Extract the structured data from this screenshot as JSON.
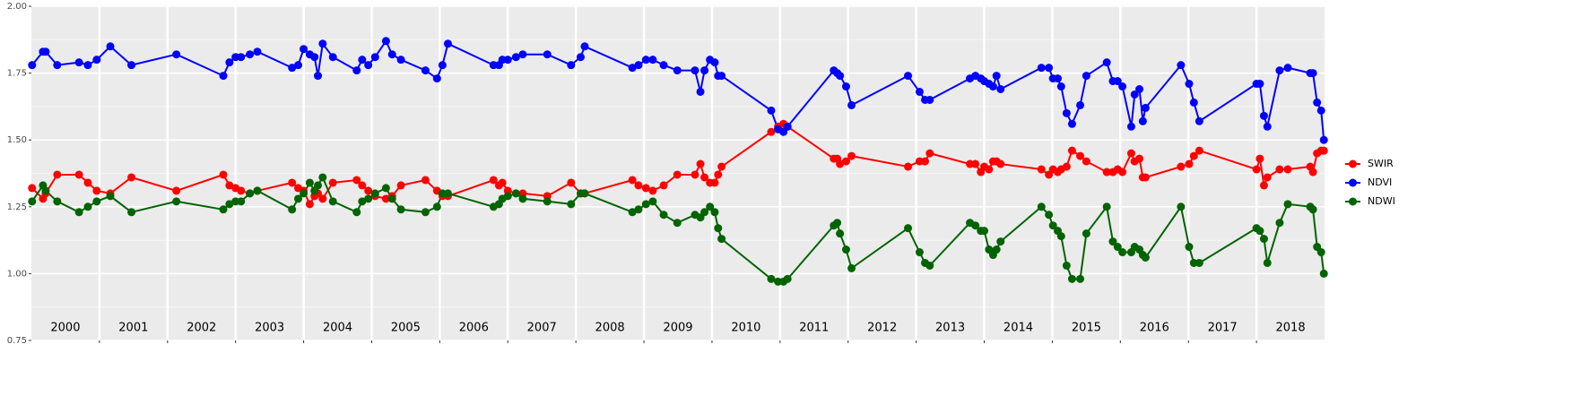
{
  "chart_data": {
    "type": "line",
    "x": [
      2000.01,
      2000.17,
      2000.21,
      2000.38,
      2000.7,
      2000.83,
      2000.96,
      2001.16,
      2001.47,
      2002.13,
      2002.82,
      2002.91,
      2003.0,
      2003.08,
      2003.21,
      2003.32,
      2003.83,
      2003.92,
      2004.0,
      2004.09,
      2004.16,
      2004.21,
      2004.28,
      2004.43,
      2004.78,
      2004.86,
      2004.95,
      2005.05,
      2005.21,
      2005.3,
      2005.43,
      2005.79,
      2005.96,
      2006.04,
      2006.12,
      2006.79,
      2006.87,
      2006.92,
      2007.0,
      2007.12,
      2007.22,
      2007.58,
      2007.93,
      2008.07,
      2008.13,
      2008.83,
      2008.92,
      2009.03,
      2009.13,
      2009.29,
      2009.49,
      2009.75,
      2009.83,
      2009.89,
      2009.97,
      2010.04,
      2010.09,
      2010.14,
      2010.87,
      2010.97,
      2011.05,
      2011.11,
      2011.79,
      2011.84,
      2011.88,
      2011.97,
      2012.05,
      2012.88,
      2013.05,
      2013.13,
      2013.2,
      2013.79,
      2013.87,
      2013.95,
      2014.0,
      2014.07,
      2014.13,
      2014.18,
      2014.24,
      2014.84,
      2014.95,
      2015.01,
      2015.08,
      2015.13,
      2015.21,
      2015.29,
      2015.41,
      2015.5,
      2015.8,
      2015.89,
      2015.96,
      2016.03,
      2016.16,
      2016.21,
      2016.28,
      2016.33,
      2016.37,
      2016.89,
      2017.01,
      2017.08,
      2017.16,
      2018.0,
      2018.05,
      2018.11,
      2018.16,
      2018.34,
      2018.46,
      2018.79,
      2018.83,
      2018.89,
      2018.95,
      2018.99
    ],
    "series": [
      {
        "name": "SWIR",
        "color": "#ff0000",
        "values": [
          1.32,
          1.28,
          1.3,
          1.37,
          1.37,
          1.34,
          1.31,
          1.3,
          1.36,
          1.31,
          1.37,
          1.33,
          1.32,
          1.31,
          1.3,
          1.31,
          1.34,
          1.32,
          1.31,
          1.26,
          1.29,
          1.3,
          1.28,
          1.34,
          1.35,
          1.33,
          1.31,
          1.29,
          1.28,
          1.29,
          1.33,
          1.35,
          1.31,
          1.29,
          1.29,
          1.35,
          1.33,
          1.34,
          1.31,
          1.3,
          1.3,
          1.29,
          1.34,
          1.3,
          1.3,
          1.35,
          1.33,
          1.32,
          1.31,
          1.33,
          1.37,
          1.37,
          1.41,
          1.36,
          1.34,
          1.34,
          1.37,
          1.4,
          1.53,
          1.55,
          1.56,
          1.55,
          1.43,
          1.43,
          1.41,
          1.42,
          1.44,
          1.4,
          1.42,
          1.42,
          1.45,
          1.41,
          1.41,
          1.38,
          1.4,
          1.39,
          1.42,
          1.42,
          1.41,
          1.39,
          1.37,
          1.39,
          1.38,
          1.39,
          1.4,
          1.46,
          1.44,
          1.42,
          1.38,
          1.38,
          1.39,
          1.38,
          1.45,
          1.42,
          1.43,
          1.36,
          1.36,
          1.4,
          1.41,
          1.44,
          1.46,
          1.39,
          1.43,
          1.33,
          1.36,
          1.39,
          1.39,
          1.4,
          1.38,
          1.45,
          1.46,
          1.46
        ]
      },
      {
        "name": "NDVI",
        "color": "#0000ff",
        "values": [
          1.78,
          1.83,
          1.83,
          1.78,
          1.79,
          1.78,
          1.8,
          1.85,
          1.78,
          1.82,
          1.74,
          1.79,
          1.81,
          1.81,
          1.82,
          1.83,
          1.77,
          1.78,
          1.84,
          1.82,
          1.81,
          1.74,
          1.86,
          1.81,
          1.76,
          1.8,
          1.78,
          1.81,
          1.87,
          1.82,
          1.8,
          1.76,
          1.73,
          1.78,
          1.86,
          1.78,
          1.78,
          1.8,
          1.8,
          1.81,
          1.82,
          1.82,
          1.78,
          1.81,
          1.85,
          1.77,
          1.78,
          1.8,
          1.8,
          1.78,
          1.76,
          1.76,
          1.68,
          1.76,
          1.8,
          1.79,
          1.74,
          1.74,
          1.61,
          1.54,
          1.53,
          1.55,
          1.76,
          1.75,
          1.74,
          1.7,
          1.63,
          1.74,
          1.68,
          1.65,
          1.65,
          1.73,
          1.74,
          1.73,
          1.72,
          1.71,
          1.7,
          1.74,
          1.69,
          1.77,
          1.77,
          1.73,
          1.73,
          1.7,
          1.6,
          1.56,
          1.63,
          1.74,
          1.79,
          1.72,
          1.72,
          1.7,
          1.55,
          1.67,
          1.69,
          1.57,
          1.62,
          1.78,
          1.71,
          1.64,
          1.57,
          1.71,
          1.71,
          1.59,
          1.55,
          1.76,
          1.77,
          1.75,
          1.75,
          1.64,
          1.61,
          1.5
        ]
      },
      {
        "name": "NDWI",
        "color": "#006400",
        "values": [
          1.27,
          1.33,
          1.31,
          1.27,
          1.23,
          1.25,
          1.27,
          1.29,
          1.23,
          1.27,
          1.24,
          1.26,
          1.27,
          1.27,
          1.3,
          1.31,
          1.24,
          1.28,
          1.3,
          1.34,
          1.31,
          1.33,
          1.36,
          1.27,
          1.23,
          1.27,
          1.28,
          1.3,
          1.32,
          1.28,
          1.24,
          1.23,
          1.25,
          1.3,
          1.3,
          1.25,
          1.26,
          1.28,
          1.29,
          1.3,
          1.28,
          1.27,
          1.26,
          1.3,
          1.3,
          1.23,
          1.24,
          1.26,
          1.27,
          1.22,
          1.19,
          1.22,
          1.21,
          1.23,
          1.25,
          1.23,
          1.17,
          1.13,
          0.98,
          0.97,
          0.97,
          0.98,
          1.18,
          1.19,
          1.15,
          1.09,
          1.02,
          1.17,
          1.08,
          1.04,
          1.03,
          1.19,
          1.18,
          1.16,
          1.16,
          1.09,
          1.07,
          1.09,
          1.12,
          1.25,
          1.22,
          1.18,
          1.16,
          1.14,
          1.03,
          0.98,
          0.98,
          1.15,
          1.25,
          1.12,
          1.1,
          1.08,
          1.08,
          1.1,
          1.09,
          1.07,
          1.06,
          1.25,
          1.1,
          1.04,
          1.04,
          1.17,
          1.16,
          1.13,
          1.04,
          1.19,
          1.26,
          1.25,
          1.24,
          1.1,
          1.08,
          1.0
        ]
      }
    ],
    "xlim": [
      2000,
      2019
    ],
    "xticks": [
      2001,
      2002,
      2003,
      2004,
      2005,
      2006,
      2007,
      2008,
      2009,
      2010,
      2011,
      2012,
      2013,
      2014,
      2015,
      2016,
      2017,
      2018
    ],
    "year_labels": [
      "2000",
      "2001",
      "2002",
      "2003",
      "2004",
      "2005",
      "2006",
      "2007",
      "2008",
      "2009",
      "2010",
      "2011",
      "2012",
      "2013",
      "2014",
      "2015",
      "2016",
      "2017",
      "2018"
    ],
    "ylim": [
      0.75,
      2.0
    ],
    "yticks": [
      {
        "value": 0.75,
        "label": "0.75"
      },
      {
        "value": 1.0,
        "label": "1.00"
      },
      {
        "value": 1.25,
        "label": "1.25"
      },
      {
        "value": 1.5,
        "label": "1.50"
      },
      {
        "value": 1.75,
        "label": "1.75"
      },
      {
        "value": 2.0,
        "label": "2.00"
      }
    ],
    "grid": true,
    "legend": "right"
  }
}
